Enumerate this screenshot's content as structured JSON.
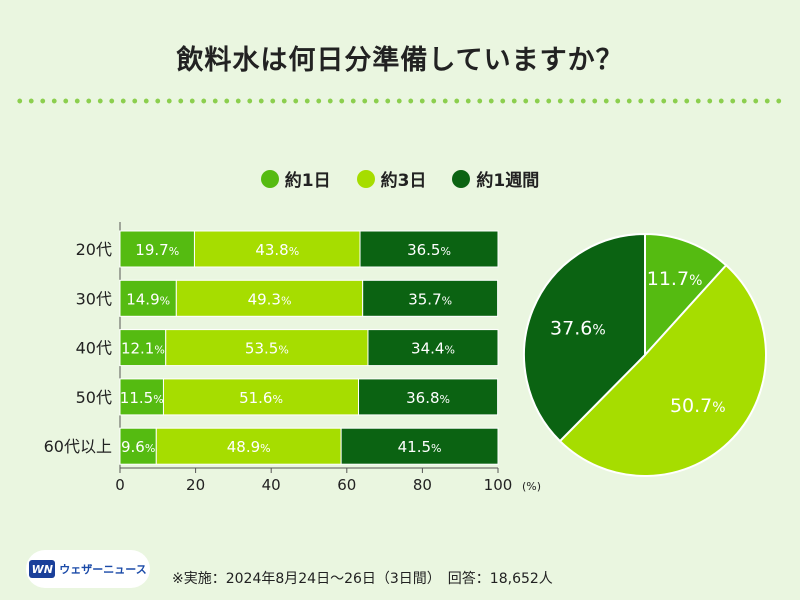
{
  "title": "飲料水は何日分準備していますか？",
  "colors": {
    "s1": "#55bb11",
    "s2": "#a6dd00",
    "s3": "#0b6312",
    "background": "#eaf6e0"
  },
  "footer": {
    "logo_mark": "WN",
    "logo_text": "ウェザーニュース",
    "note": "※実施：2024年8月24日〜26日（3日間）　回答：18,652人"
  },
  "chart_data": [
    {
      "type": "bar",
      "orientation": "horizontal",
      "stacked": true,
      "categories": [
        "20代",
        "30代",
        "40代",
        "50代",
        "60代以上"
      ],
      "series": [
        {
          "name": "約1日",
          "values": [
            19.7,
            14.9,
            12.1,
            11.5,
            9.6
          ]
        },
        {
          "name": "約3日",
          "values": [
            43.8,
            49.3,
            53.5,
            51.6,
            48.9
          ]
        },
        {
          "name": "約1週間",
          "values": [
            36.5,
            35.7,
            34.4,
            36.8,
            41.5
          ]
        }
      ],
      "xlim": [
        0,
        100
      ],
      "xticks": [
        0,
        20,
        40,
        60,
        80,
        100
      ],
      "xunit": "(%)",
      "value_suffix": "%",
      "legend": "top-center"
    },
    {
      "type": "pie",
      "labels": [
        "約1日",
        "約3日",
        "約1週間"
      ],
      "values": [
        11.7,
        50.7,
        37.6
      ],
      "value_suffix": "%"
    }
  ]
}
